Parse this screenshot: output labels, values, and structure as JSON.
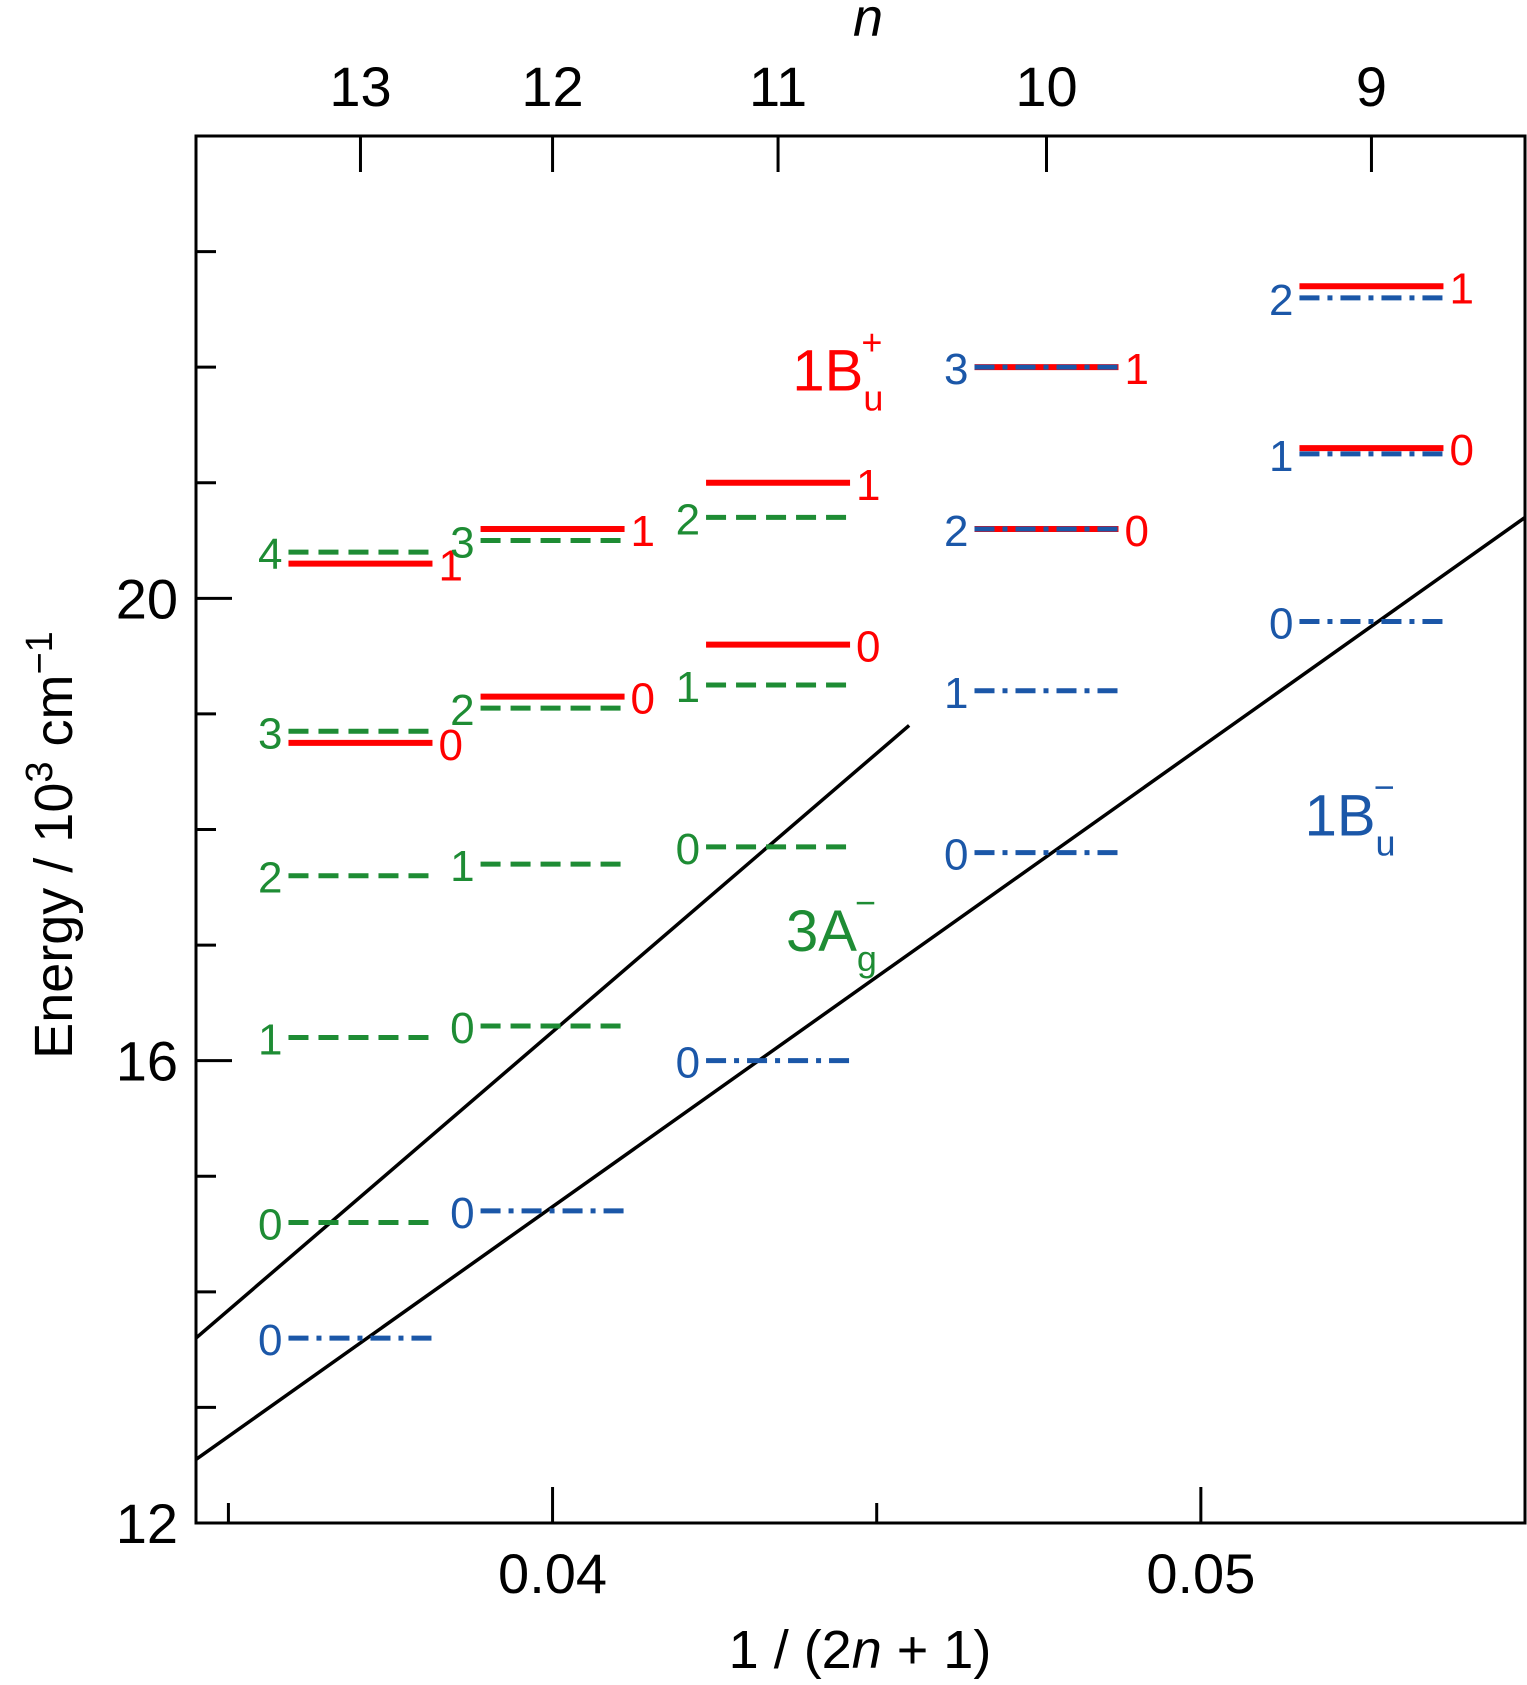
{
  "chart_data": {
    "type": "scatter",
    "xlabel": "1 / (2n + 1)",
    "ylabel": "Energy / 10^3 cm^-1",
    "top_axis_label": "n",
    "xlim": [
      0.0345,
      0.055
    ],
    "ylim": [
      12,
      24
    ],
    "x_ticks_major": [
      {
        "value": 0.04,
        "label": "0.04"
      },
      {
        "value": 0.05,
        "label": "0.05"
      }
    ],
    "x_ticks_minor": [
      0.035,
      0.045
    ],
    "y_ticks_major": [
      {
        "value": 12,
        "label": "12"
      },
      {
        "value": 16,
        "label": "16"
      },
      {
        "value": 20,
        "label": "20"
      }
    ],
    "y_ticks_minor": [
      13,
      14,
      15,
      17,
      18,
      19,
      21,
      22,
      23
    ],
    "top_ticks": [
      {
        "n": 13,
        "label": "13"
      },
      {
        "n": 12,
        "label": "12"
      },
      {
        "n": 11,
        "label": "11"
      },
      {
        "n": 10,
        "label": "10"
      },
      {
        "n": 9,
        "label": "9"
      }
    ],
    "series": [
      {
        "name": "1Bu+",
        "color": "#ff0000",
        "style": "solid",
        "label_side": "right",
        "levels": [
          {
            "n": 13,
            "v": 0,
            "label": "0",
            "energy": 18.75
          },
          {
            "n": 13,
            "v": 1,
            "label": "1",
            "energy": 20.3
          },
          {
            "n": 12,
            "v": 0,
            "label": "0",
            "energy": 19.15
          },
          {
            "n": 12,
            "v": 1,
            "label": "1",
            "energy": 20.6
          },
          {
            "n": 11,
            "v": 0,
            "label": "0",
            "energy": 19.6
          },
          {
            "n": 11,
            "v": 1,
            "label": "1",
            "energy": 21.0
          },
          {
            "n": 10,
            "v": 0,
            "label": "0",
            "energy": 20.6
          },
          {
            "n": 10,
            "v": 1,
            "label": "1",
            "energy": 22.0
          },
          {
            "n": 9,
            "v": 0,
            "label": "0",
            "energy": 21.3
          },
          {
            "n": 9,
            "v": 1,
            "label": "1",
            "energy": 22.7
          }
        ]
      },
      {
        "name": "3Ag-",
        "color": "#1e8c34",
        "style": "dashed",
        "label_side": "left",
        "levels": [
          {
            "n": 13,
            "v": 0,
            "label": "0",
            "energy": 14.6
          },
          {
            "n": 13,
            "v": 1,
            "label": "1",
            "energy": 16.2
          },
          {
            "n": 13,
            "v": 2,
            "label": "2",
            "energy": 17.6
          },
          {
            "n": 13,
            "v": 3,
            "label": "3",
            "energy": 18.85
          },
          {
            "n": 13,
            "v": 4,
            "label": "4",
            "energy": 20.4
          },
          {
            "n": 12,
            "v": 0,
            "label": "0",
            "energy": 16.3
          },
          {
            "n": 12,
            "v": 1,
            "label": "1",
            "energy": 17.7
          },
          {
            "n": 12,
            "v": 2,
            "label": "2",
            "energy": 19.05
          },
          {
            "n": 12,
            "v": 3,
            "label": "3",
            "energy": 20.5
          },
          {
            "n": 11,
            "v": 0,
            "label": "0",
            "energy": 17.85
          },
          {
            "n": 11,
            "v": 1,
            "label": "1",
            "energy": 19.25
          },
          {
            "n": 11,
            "v": 2,
            "label": "2",
            "energy": 20.7
          }
        ]
      },
      {
        "name": "1Bu-",
        "color": "#1b57a8",
        "style": "dashdot",
        "label_side": "left",
        "levels": [
          {
            "n": 13,
            "v": 0,
            "label": "0",
            "energy": 13.6
          },
          {
            "n": 12,
            "v": 0,
            "label": "0",
            "energy": 14.7
          },
          {
            "n": 11,
            "v": 0,
            "label": "0",
            "energy": 16.0
          },
          {
            "n": 10,
            "v": 0,
            "label": "0",
            "energy": 17.8
          },
          {
            "n": 10,
            "v": 1,
            "label": "1",
            "energy": 19.2
          },
          {
            "n": 10,
            "v": 2,
            "label": "2",
            "energy": 20.6
          },
          {
            "n": 10,
            "v": 3,
            "label": "3",
            "energy": 22.0
          },
          {
            "n": 9,
            "v": 0,
            "label": "0",
            "energy": 19.8
          },
          {
            "n": 9,
            "v": 1,
            "label": "1",
            "energy": 21.25
          },
          {
            "n": 9,
            "v": 2,
            "label": "2",
            "energy": 22.6
          }
        ]
      }
    ],
    "fit_lines": [
      {
        "color": "#000000",
        "points": [
          [
            0.0345,
            13.6
          ],
          [
            0.0455,
            18.9
          ]
        ]
      },
      {
        "color": "#000000",
        "points": [
          [
            0.0345,
            12.55
          ],
          [
            0.055,
            20.7
          ]
        ]
      }
    ],
    "state_labels": [
      {
        "series": "1Bu+",
        "text": "1B",
        "sub": "u",
        "sup": "+",
        "x": 0.0437,
        "y": 21.8
      },
      {
        "series": "3Ag-",
        "text": "3A",
        "sub": "g",
        "sup": "−",
        "x": 0.0436,
        "y": 16.95
      },
      {
        "series": "1Bu-",
        "text": "1B",
        "sub": "u",
        "sup": "−",
        "x": 0.0516,
        "y": 17.95
      }
    ]
  }
}
